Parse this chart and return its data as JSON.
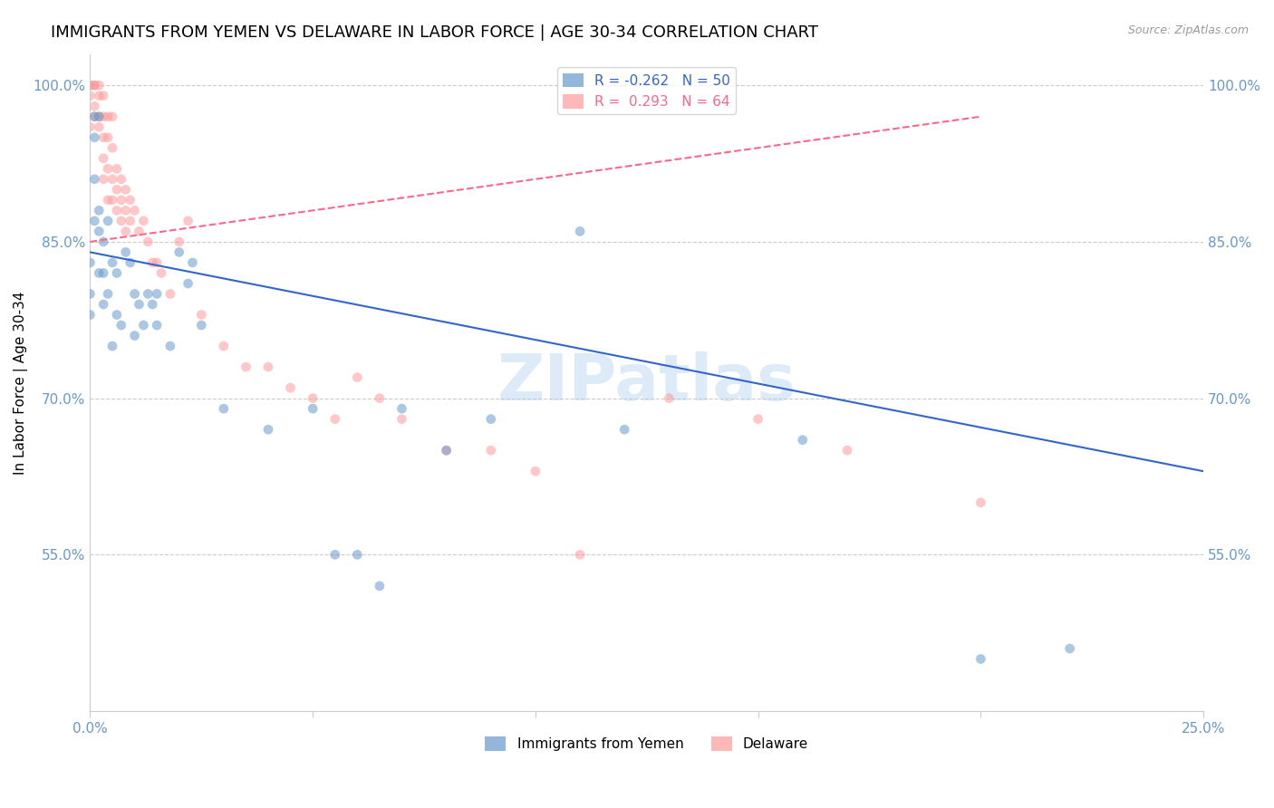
{
  "title": "IMMIGRANTS FROM YEMEN VS DELAWARE IN LABOR FORCE | AGE 30-34 CORRELATION CHART",
  "source_text": "Source: ZipAtlas.com",
  "ylabel": "In Labor Force | Age 30-34",
  "xlim": [
    0.0,
    0.25
  ],
  "ylim": [
    0.4,
    1.03
  ],
  "yticks": [
    0.55,
    0.7,
    0.85,
    1.0
  ],
  "ytick_labels": [
    "55.0%",
    "70.0%",
    "85.0%",
    "100.0%"
  ],
  "xticks": [
    0.0,
    0.05,
    0.1,
    0.15,
    0.2,
    0.25
  ],
  "xtick_labels": [
    "0.0%",
    "",
    "",
    "",
    "",
    "25.0%"
  ],
  "corr_labels": [
    "R = -0.262   N = 50",
    "R =  0.293   N = 64"
  ],
  "bottom_labels": [
    "Immigrants from Yemen",
    "Delaware"
  ],
  "blue_scatter_x": [
    0.0,
    0.0,
    0.0,
    0.001,
    0.001,
    0.001,
    0.001,
    0.002,
    0.002,
    0.002,
    0.002,
    0.003,
    0.003,
    0.003,
    0.004,
    0.004,
    0.005,
    0.005,
    0.006,
    0.006,
    0.007,
    0.008,
    0.009,
    0.01,
    0.01,
    0.011,
    0.012,
    0.013,
    0.014,
    0.015,
    0.015,
    0.018,
    0.02,
    0.022,
    0.023,
    0.025,
    0.03,
    0.04,
    0.05,
    0.055,
    0.06,
    0.065,
    0.07,
    0.08,
    0.09,
    0.11,
    0.12,
    0.16,
    0.2,
    0.22
  ],
  "blue_scatter_y": [
    0.83,
    0.8,
    0.78,
    0.97,
    0.95,
    0.91,
    0.87,
    0.97,
    0.88,
    0.86,
    0.82,
    0.85,
    0.82,
    0.79,
    0.87,
    0.8,
    0.83,
    0.75,
    0.82,
    0.78,
    0.77,
    0.84,
    0.83,
    0.8,
    0.76,
    0.79,
    0.77,
    0.8,
    0.79,
    0.8,
    0.77,
    0.75,
    0.84,
    0.81,
    0.83,
    0.77,
    0.69,
    0.67,
    0.69,
    0.55,
    0.55,
    0.52,
    0.69,
    0.65,
    0.68,
    0.86,
    0.67,
    0.66,
    0.45,
    0.46
  ],
  "pink_scatter_x": [
    0.0,
    0.0,
    0.0,
    0.0,
    0.001,
    0.001,
    0.001,
    0.001,
    0.002,
    0.002,
    0.002,
    0.002,
    0.003,
    0.003,
    0.003,
    0.003,
    0.003,
    0.004,
    0.004,
    0.004,
    0.004,
    0.005,
    0.005,
    0.005,
    0.005,
    0.006,
    0.006,
    0.006,
    0.007,
    0.007,
    0.007,
    0.008,
    0.008,
    0.008,
    0.009,
    0.009,
    0.01,
    0.011,
    0.012,
    0.013,
    0.014,
    0.015,
    0.016,
    0.018,
    0.02,
    0.022,
    0.025,
    0.03,
    0.035,
    0.04,
    0.045,
    0.05,
    0.055,
    0.06,
    0.065,
    0.07,
    0.08,
    0.09,
    0.1,
    0.11,
    0.13,
    0.15,
    0.17,
    0.2
  ],
  "pink_scatter_y": [
    1.0,
    1.0,
    0.99,
    0.96,
    1.0,
    1.0,
    0.98,
    0.97,
    1.0,
    0.99,
    0.97,
    0.96,
    0.99,
    0.97,
    0.95,
    0.93,
    0.91,
    0.97,
    0.95,
    0.92,
    0.89,
    0.97,
    0.94,
    0.91,
    0.89,
    0.92,
    0.9,
    0.88,
    0.91,
    0.89,
    0.87,
    0.9,
    0.88,
    0.86,
    0.89,
    0.87,
    0.88,
    0.86,
    0.87,
    0.85,
    0.83,
    0.83,
    0.82,
    0.8,
    0.85,
    0.87,
    0.78,
    0.75,
    0.73,
    0.73,
    0.71,
    0.7,
    0.68,
    0.72,
    0.7,
    0.68,
    0.65,
    0.65,
    0.63,
    0.55,
    0.7,
    0.68,
    0.65,
    0.6
  ],
  "blue_line_x": [
    0.0,
    0.25
  ],
  "blue_line_y": [
    0.84,
    0.63
  ],
  "pink_line_x": [
    0.0,
    0.2
  ],
  "pink_line_y": [
    0.85,
    0.97
  ],
  "marker_size": 60,
  "marker_alpha": 0.55,
  "blue_color": "#6699cc",
  "pink_color": "#ff9999",
  "blue_line_color": "#3366cc",
  "pink_line_color": "#ff6688",
  "background_color": "#ffffff",
  "grid_color": "#cccccc",
  "axis_color": "#6699cc",
  "watermark_text": "ZIPatlas",
  "watermark_color": "#aaccee",
  "watermark_alpha": 0.4,
  "title_fontsize": 13,
  "label_fontsize": 11,
  "tick_fontsize": 11
}
